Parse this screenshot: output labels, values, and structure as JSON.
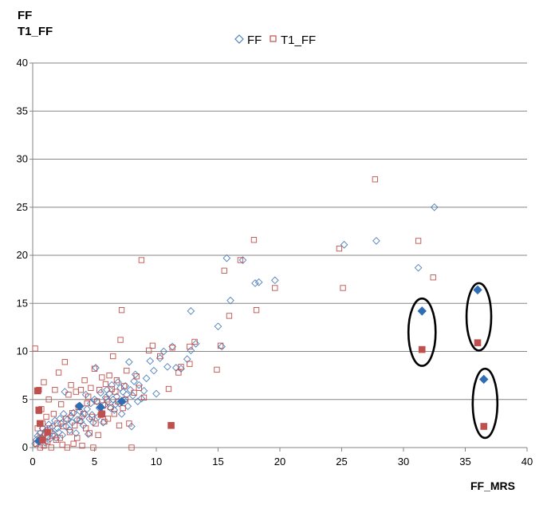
{
  "chart_data": {
    "type": "scatter",
    "ylabel_lines": [
      "FF",
      "T1_FF"
    ],
    "xlabel": "FF_MRS",
    "xlim": [
      0,
      40
    ],
    "ylim": [
      0,
      40
    ],
    "xticks": [
      0,
      5,
      10,
      15,
      20,
      25,
      30,
      35,
      40
    ],
    "yticks": [
      0,
      5,
      10,
      15,
      20,
      25,
      30,
      35,
      40
    ],
    "grid": "horizontal",
    "legend_position": "top-center",
    "colors": {
      "FF": "#4f81bd",
      "T1_FF": "#c0504d",
      "grid": "#868686",
      "highlight": "#000000"
    },
    "series": [
      {
        "name": "FF",
        "marker": "diamond-open",
        "points": [
          [
            0.2,
            0.4
          ],
          [
            0.3,
            0.8
          ],
          [
            0.4,
            1.2
          ],
          [
            0.5,
            0.6
          ],
          [
            0.6,
            1.5
          ],
          [
            0.7,
            1.0
          ],
          [
            0.8,
            2.0
          ],
          [
            0.9,
            1.3
          ],
          [
            1.0,
            0.5
          ],
          [
            1.1,
            1.8
          ],
          [
            1.2,
            1.1
          ],
          [
            1.3,
            2.4
          ],
          [
            1.4,
            0.9
          ],
          [
            1.5,
            1.6
          ],
          [
            1.6,
            2.2
          ],
          [
            1.7,
            1.4
          ],
          [
            1.8,
            2.8
          ],
          [
            1.9,
            1.0
          ],
          [
            2.0,
            2.0
          ],
          [
            2.1,
            1.6
          ],
          [
            2.2,
            3.0
          ],
          [
            2.3,
            2.5
          ],
          [
            2.4,
            1.3
          ],
          [
            2.5,
            3.5
          ],
          [
            2.6,
            5.8
          ],
          [
            2.7,
            2.2
          ],
          [
            2.8,
            2.9
          ],
          [
            3.0,
            1.8
          ],
          [
            3.1,
            3.3
          ],
          [
            3.2,
            2.6
          ],
          [
            3.3,
            3.6
          ],
          [
            3.5,
            1.5
          ],
          [
            3.6,
            2.9
          ],
          [
            3.7,
            4.3
          ],
          [
            3.8,
            3.8
          ],
          [
            3.9,
            2.7
          ],
          [
            4.0,
            3.2
          ],
          [
            4.1,
            2.3
          ],
          [
            4.2,
            3.5
          ],
          [
            4.3,
            5.5
          ],
          [
            4.4,
            4.0
          ],
          [
            4.5,
            1.4
          ],
          [
            4.6,
            3.0
          ],
          [
            4.7,
            4.6
          ],
          [
            4.8,
            3.4
          ],
          [
            4.9,
            2.6
          ],
          [
            5.0,
            5.0
          ],
          [
            5.1,
            8.3
          ],
          [
            5.2,
            4.8
          ],
          [
            5.3,
            3.2
          ],
          [
            5.4,
            4.1
          ],
          [
            5.5,
            5.7
          ],
          [
            5.6,
            3.6
          ],
          [
            5.7,
            2.6
          ],
          [
            5.8,
            4.4
          ],
          [
            5.9,
            5.2
          ],
          [
            6.0,
            6.0
          ],
          [
            6.1,
            4.8
          ],
          [
            6.2,
            5.6
          ],
          [
            6.3,
            4.1
          ],
          [
            6.4,
            6.5
          ],
          [
            6.5,
            5.0
          ],
          [
            6.6,
            3.9
          ],
          [
            6.7,
            4.5
          ],
          [
            6.8,
            5.3
          ],
          [
            6.9,
            6.8
          ],
          [
            7.0,
            4.6
          ],
          [
            7.1,
            6.2
          ],
          [
            7.2,
            3.5
          ],
          [
            7.3,
            5.8
          ],
          [
            7.4,
            4.9
          ],
          [
            7.5,
            6.4
          ],
          [
            7.6,
            5.5
          ],
          [
            7.7,
            4.3
          ],
          [
            7.8,
            8.9
          ],
          [
            7.9,
            6.0
          ],
          [
            8.0,
            2.2
          ],
          [
            8.1,
            5.4
          ],
          [
            8.2,
            6.9
          ],
          [
            8.3,
            7.6
          ],
          [
            8.5,
            4.8
          ],
          [
            8.6,
            6.5
          ],
          [
            8.8,
            5.1
          ],
          [
            9.0,
            5.9
          ],
          [
            9.2,
            7.2
          ],
          [
            9.5,
            9.0
          ],
          [
            9.8,
            8.0
          ],
          [
            10.0,
            5.6
          ],
          [
            10.3,
            9.3
          ],
          [
            10.6,
            10.0
          ],
          [
            10.9,
            8.4
          ],
          [
            11.3,
            10.5
          ],
          [
            11.6,
            8.3
          ],
          [
            12.0,
            8.2
          ],
          [
            12.5,
            9.2
          ],
          [
            12.8,
            10.1
          ],
          [
            12.8,
            14.2
          ],
          [
            13.2,
            10.8
          ],
          [
            15.0,
            12.6
          ],
          [
            15.3,
            10.5
          ],
          [
            15.7,
            19.7
          ],
          [
            16.0,
            15.3
          ],
          [
            17.0,
            19.5
          ],
          [
            18.0,
            17.1
          ],
          [
            18.3,
            17.2
          ],
          [
            19.6,
            17.4
          ],
          [
            25.2,
            21.1
          ],
          [
            27.8,
            21.5
          ],
          [
            31.2,
            18.7
          ],
          [
            32.5,
            25.0
          ]
        ]
      },
      {
        "name": "T1_FF",
        "marker": "square-open",
        "points": [
          [
            0.2,
            10.3
          ],
          [
            0.3,
            0.4
          ],
          [
            0.4,
            2.0
          ],
          [
            0.5,
            3.8
          ],
          [
            0.5,
            6.0
          ],
          [
            0.6,
            1.0
          ],
          [
            0.6,
            0.0
          ],
          [
            0.7,
            4.0
          ],
          [
            0.8,
            2.5
          ],
          [
            0.9,
            6.8
          ],
          [
            0.9,
            0.2
          ],
          [
            1.0,
            1.5
          ],
          [
            1.1,
            3.2
          ],
          [
            1.2,
            0.6
          ],
          [
            1.3,
            5.0
          ],
          [
            1.4,
            2.0
          ],
          [
            1.5,
            0.0
          ],
          [
            1.6,
            1.2
          ],
          [
            1.7,
            3.5
          ],
          [
            1.8,
            6.0
          ],
          [
            1.9,
            0.8
          ],
          [
            2.0,
            2.5
          ],
          [
            2.1,
            7.8
          ],
          [
            2.2,
            1.0
          ],
          [
            2.3,
            4.5
          ],
          [
            2.4,
            0.3
          ],
          [
            2.5,
            2.2
          ],
          [
            2.6,
            8.9
          ],
          [
            2.7,
            3.0
          ],
          [
            2.8,
            0.0
          ],
          [
            2.9,
            5.5
          ],
          [
            3.0,
            1.6
          ],
          [
            3.1,
            6.5
          ],
          [
            3.2,
            3.6
          ],
          [
            3.3,
            0.4
          ],
          [
            3.4,
            2.3
          ],
          [
            3.5,
            5.8
          ],
          [
            3.6,
            1.0
          ],
          [
            3.7,
            4.2
          ],
          [
            3.8,
            2.8
          ],
          [
            3.9,
            6.0
          ],
          [
            4.0,
            0.2
          ],
          [
            4.1,
            3.5
          ],
          [
            4.2,
            7.0
          ],
          [
            4.3,
            2.0
          ],
          [
            4.4,
            4.6
          ],
          [
            4.5,
            5.3
          ],
          [
            4.6,
            1.5
          ],
          [
            4.7,
            6.2
          ],
          [
            4.8,
            3.2
          ],
          [
            4.9,
            0.0
          ],
          [
            5.0,
            8.2
          ],
          [
            5.1,
            2.5
          ],
          [
            5.2,
            4.8
          ],
          [
            5.3,
            1.3
          ],
          [
            5.4,
            6.0
          ],
          [
            5.5,
            3.4
          ],
          [
            5.6,
            7.3
          ],
          [
            5.7,
            4.4
          ],
          [
            5.8,
            2.7
          ],
          [
            5.9,
            6.6
          ],
          [
            6.0,
            5.0
          ],
          [
            6.1,
            3.0
          ],
          [
            6.2,
            7.5
          ],
          [
            6.3,
            4.2
          ],
          [
            6.4,
            6.1
          ],
          [
            6.5,
            9.5
          ],
          [
            6.6,
            3.5
          ],
          [
            6.7,
            5.8
          ],
          [
            6.8,
            7.0
          ],
          [
            6.9,
            4.8
          ],
          [
            7.0,
            2.3
          ],
          [
            7.1,
            11.2
          ],
          [
            7.2,
            14.3
          ],
          [
            7.3,
            4.1
          ],
          [
            7.4,
            6.4
          ],
          [
            7.5,
            5.0
          ],
          [
            7.6,
            8.0
          ],
          [
            7.8,
            2.5
          ],
          [
            8.0,
            0.0
          ],
          [
            8.2,
            5.7
          ],
          [
            8.4,
            7.4
          ],
          [
            8.6,
            6.2
          ],
          [
            8.8,
            19.5
          ],
          [
            9.0,
            5.2
          ],
          [
            9.4,
            10.1
          ],
          [
            9.7,
            10.6
          ],
          [
            10.3,
            9.5
          ],
          [
            11.0,
            6.1
          ],
          [
            11.3,
            10.4
          ],
          [
            11.8,
            7.8
          ],
          [
            12.0,
            8.4
          ],
          [
            12.7,
            8.7
          ],
          [
            12.7,
            10.5
          ],
          [
            13.1,
            11.0
          ],
          [
            14.9,
            8.1
          ],
          [
            15.2,
            10.6
          ],
          [
            15.5,
            18.4
          ],
          [
            15.9,
            13.7
          ],
          [
            16.8,
            19.5
          ],
          [
            17.9,
            21.6
          ],
          [
            18.1,
            14.3
          ],
          [
            19.6,
            16.6
          ],
          [
            24.8,
            20.7
          ],
          [
            25.1,
            16.6
          ],
          [
            27.7,
            27.9
          ],
          [
            31.2,
            21.5
          ],
          [
            32.4,
            17.7
          ]
        ]
      },
      {
        "name": "FF",
        "marker": "diamond-filled",
        "points": [
          [
            0.5,
            0.7
          ],
          [
            3.8,
            4.3
          ],
          [
            5.5,
            4.2
          ],
          [
            7.2,
            4.8
          ],
          [
            31.5,
            14.2
          ],
          [
            36.0,
            16.4
          ],
          [
            36.5,
            7.1
          ]
        ]
      },
      {
        "name": "T1_FF",
        "marker": "square-filled",
        "points": [
          [
            0.4,
            5.9
          ],
          [
            0.5,
            3.9
          ],
          [
            0.6,
            2.5
          ],
          [
            0.8,
            0.8
          ],
          [
            1.2,
            1.6
          ],
          [
            5.6,
            3.5
          ],
          [
            11.2,
            2.3
          ],
          [
            31.5,
            10.2
          ],
          [
            36.0,
            10.9
          ],
          [
            36.5,
            2.2
          ]
        ]
      }
    ],
    "highlights": [
      {
        "center": [
          31.5,
          12.0
        ],
        "rx": 1.1,
        "ry": 3.5
      },
      {
        "center": [
          36.1,
          13.6
        ],
        "rx": 1.0,
        "ry": 3.5
      },
      {
        "center": [
          36.6,
          4.6
        ],
        "rx": 1.0,
        "ry": 3.6
      }
    ]
  }
}
